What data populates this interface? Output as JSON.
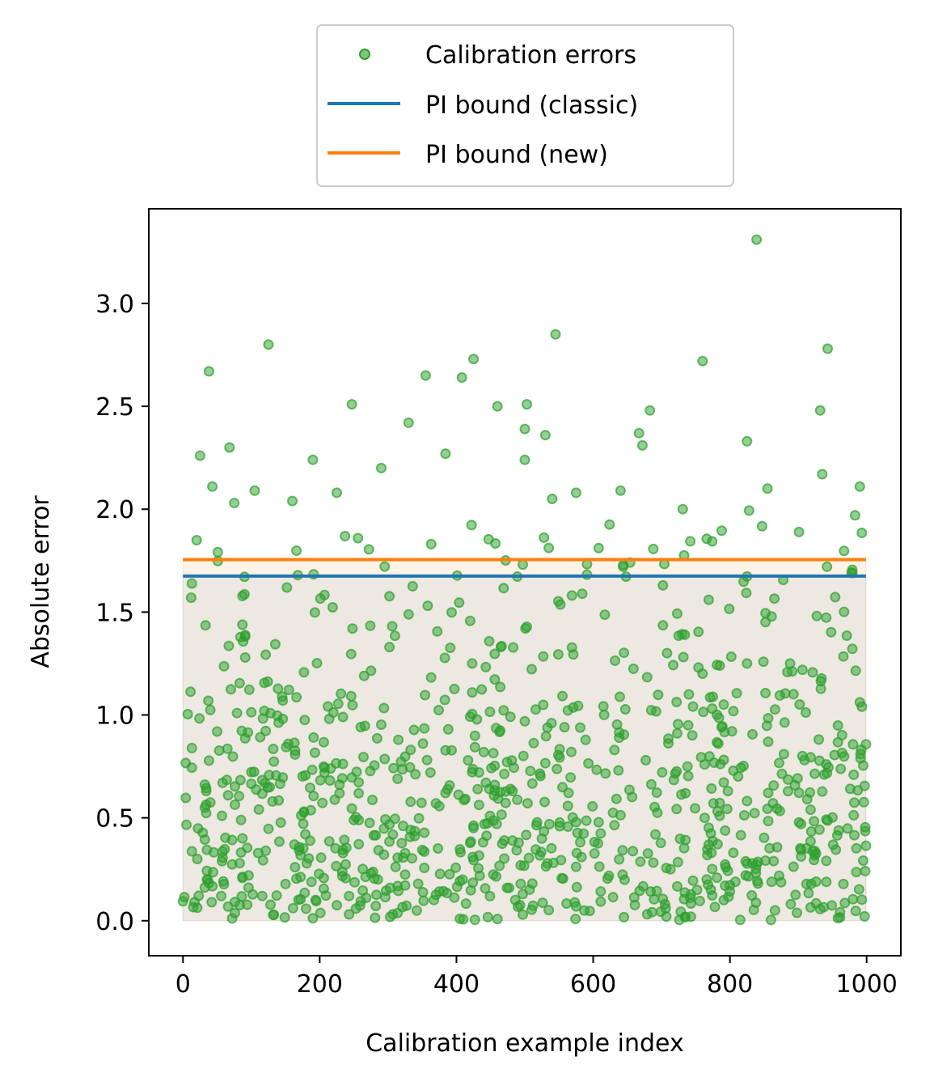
{
  "chart_data": {
    "type": "scatter",
    "xlabel": "Calibration example index",
    "ylabel": "Absolute error",
    "xlim": [
      -50,
      1050
    ],
    "ylim": [
      -0.17,
      3.46
    ],
    "xticks": [
      0,
      200,
      400,
      600,
      800,
      1000
    ],
    "yticks": [
      0.0,
      0.5,
      1.0,
      1.5,
      2.0,
      2.5,
      3.0
    ],
    "xtick_labels": [
      "0",
      "200",
      "400",
      "600",
      "800",
      "1000"
    ],
    "ytick_labels": [
      "0.0",
      "0.5",
      "1.0",
      "1.5",
      "2.0",
      "2.5",
      "3.0"
    ],
    "grid": false,
    "legend_position": "top-center-outside",
    "n_points": 1000,
    "series": [
      {
        "name": "Calibration errors",
        "kind": "scatter",
        "color": "#2ca02c"
      },
      {
        "name": "PI bound (classic)",
        "kind": "hline",
        "y": 1.675,
        "x_range": [
          0,
          999
        ],
        "color": "#1f77b4"
      },
      {
        "name": "PI bound (new)",
        "kind": "hline",
        "y": 1.755,
        "x_range": [
          0,
          999
        ],
        "color": "#ff7f0e"
      }
    ],
    "highlighted_points": [
      {
        "x": 839,
        "y": 3.31
      },
      {
        "x": 125,
        "y": 2.8
      },
      {
        "x": 545,
        "y": 2.85
      },
      {
        "x": 38,
        "y": 2.67
      },
      {
        "x": 943,
        "y": 2.78
      },
      {
        "x": 760,
        "y": 2.72
      },
      {
        "x": 425,
        "y": 2.73
      },
      {
        "x": 355,
        "y": 2.65
      },
      {
        "x": 408,
        "y": 2.64
      },
      {
        "x": 247,
        "y": 2.51
      },
      {
        "x": 503,
        "y": 2.51
      },
      {
        "x": 460,
        "y": 2.5
      },
      {
        "x": 683,
        "y": 2.48
      },
      {
        "x": 932,
        "y": 2.48
      },
      {
        "x": 330,
        "y": 2.42
      },
      {
        "x": 500,
        "y": 2.39
      },
      {
        "x": 667,
        "y": 2.37
      },
      {
        "x": 530,
        "y": 2.36
      },
      {
        "x": 825,
        "y": 2.33
      },
      {
        "x": 68,
        "y": 2.3
      },
      {
        "x": 672,
        "y": 2.31
      },
      {
        "x": 25,
        "y": 2.26
      },
      {
        "x": 384,
        "y": 2.27
      },
      {
        "x": 190,
        "y": 2.24
      },
      {
        "x": 500,
        "y": 2.24
      },
      {
        "x": 290,
        "y": 2.2
      },
      {
        "x": 935,
        "y": 2.17
      },
      {
        "x": 990,
        "y": 2.11
      },
      {
        "x": 43,
        "y": 2.11
      },
      {
        "x": 855,
        "y": 2.1
      },
      {
        "x": 105,
        "y": 2.09
      },
      {
        "x": 640,
        "y": 2.09
      },
      {
        "x": 225,
        "y": 2.08
      },
      {
        "x": 575,
        "y": 2.08
      },
      {
        "x": 160,
        "y": 2.04
      },
      {
        "x": 75,
        "y": 2.03
      },
      {
        "x": 540,
        "y": 2.05
      },
      {
        "x": 731,
        "y": 2.0
      }
    ]
  }
}
